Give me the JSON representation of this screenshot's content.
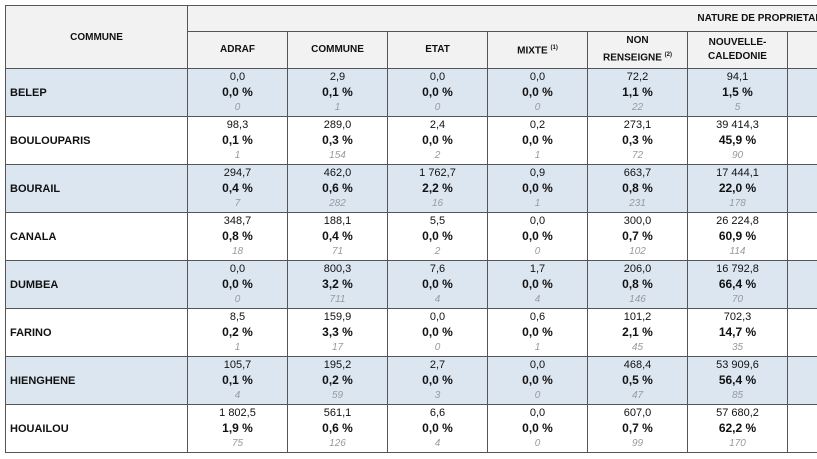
{
  "header": {
    "commune_label": "COMMUNE",
    "group_label": "NATURE DE PROPRIETAIRE",
    "columns": [
      {
        "label": "ADRAF",
        "line2": "",
        "note": ""
      },
      {
        "label": "COMMUNE",
        "line2": "",
        "note": ""
      },
      {
        "label": "ETAT",
        "line2": "",
        "note": ""
      },
      {
        "label": "MIXTE",
        "line2": "",
        "note": "(1)"
      },
      {
        "label": "NON",
        "line2": "RENSEIGNE",
        "note": "(2)"
      },
      {
        "label": "NOUVELLE-",
        "line2": "CALEDONIE",
        "note": ""
      }
    ]
  },
  "rows": [
    {
      "commune": "BELEP",
      "shaded": true,
      "cells": [
        {
          "area": "0,0",
          "pct": "0,0 %",
          "count": "0"
        },
        {
          "area": "2,9",
          "pct": "0,1 %",
          "count": "1"
        },
        {
          "area": "0,0",
          "pct": "0,0 %",
          "count": "0"
        },
        {
          "area": "0,0",
          "pct": "0,0 %",
          "count": "0"
        },
        {
          "area": "72,2",
          "pct": "1,1 %",
          "count": "22"
        },
        {
          "area": "94,1",
          "pct": "1,5 %",
          "count": "5"
        }
      ]
    },
    {
      "commune": "BOULOUPARIS",
      "shaded": false,
      "cells": [
        {
          "area": "98,3",
          "pct": "0,1 %",
          "count": "1"
        },
        {
          "area": "289,0",
          "pct": "0,3 %",
          "count": "154"
        },
        {
          "area": "2,4",
          "pct": "0,0 %",
          "count": "2"
        },
        {
          "area": "0,2",
          "pct": "0,0 %",
          "count": "1"
        },
        {
          "area": "273,1",
          "pct": "0,3 %",
          "count": "72"
        },
        {
          "area": "39 414,3",
          "pct": "45,9 %",
          "count": "90"
        }
      ]
    },
    {
      "commune": "BOURAIL",
      "shaded": true,
      "cells": [
        {
          "area": "294,7",
          "pct": "0,4 %",
          "count": "7"
        },
        {
          "area": "462,0",
          "pct": "0,6 %",
          "count": "282"
        },
        {
          "area": "1 762,7",
          "pct": "2,2 %",
          "count": "16"
        },
        {
          "area": "0,9",
          "pct": "0,0 %",
          "count": "1"
        },
        {
          "area": "663,7",
          "pct": "0,8 %",
          "count": "231"
        },
        {
          "area": "17 444,1",
          "pct": "22,0 %",
          "count": "178"
        }
      ]
    },
    {
      "commune": "CANALA",
      "shaded": false,
      "cells": [
        {
          "area": "348,7",
          "pct": "0,8 %",
          "count": "18"
        },
        {
          "area": "188,1",
          "pct": "0,4 %",
          "count": "71"
        },
        {
          "area": "5,5",
          "pct": "0,0 %",
          "count": "2"
        },
        {
          "area": "0,0",
          "pct": "0,0 %",
          "count": "0"
        },
        {
          "area": "300,0",
          "pct": "0,7 %",
          "count": "102"
        },
        {
          "area": "26 224,8",
          "pct": "60,9 %",
          "count": "114"
        }
      ]
    },
    {
      "commune": "DUMBEA",
      "shaded": true,
      "cells": [
        {
          "area": "0,0",
          "pct": "0,0 %",
          "count": "0"
        },
        {
          "area": "800,3",
          "pct": "3,2 %",
          "count": "711"
        },
        {
          "area": "7,6",
          "pct": "0,0 %",
          "count": "4"
        },
        {
          "area": "1,7",
          "pct": "0,0 %",
          "count": "4"
        },
        {
          "area": "206,0",
          "pct": "0,8 %",
          "count": "146"
        },
        {
          "area": "16 792,8",
          "pct": "66,4 %",
          "count": "70"
        }
      ]
    },
    {
      "commune": "FARINO",
      "shaded": false,
      "cells": [
        {
          "area": "8,5",
          "pct": "0,2 %",
          "count": "1"
        },
        {
          "area": "159,9",
          "pct": "3,3 %",
          "count": "17"
        },
        {
          "area": "0,0",
          "pct": "0,0 %",
          "count": "0"
        },
        {
          "area": "0,6",
          "pct": "0,0 %",
          "count": "1"
        },
        {
          "area": "101,2",
          "pct": "2,1 %",
          "count": "45"
        },
        {
          "area": "702,3",
          "pct": "14,7 %",
          "count": "35"
        }
      ]
    },
    {
      "commune": "HIENGHENE",
      "shaded": true,
      "cells": [
        {
          "area": "105,7",
          "pct": "0,1 %",
          "count": "4"
        },
        {
          "area": "195,2",
          "pct": "0,2 %",
          "count": "59"
        },
        {
          "area": "2,7",
          "pct": "0,0 %",
          "count": "3"
        },
        {
          "area": "0,0",
          "pct": "0,0 %",
          "count": "0"
        },
        {
          "area": "468,4",
          "pct": "0,5 %",
          "count": "47"
        },
        {
          "area": "53 909,6",
          "pct": "56,4 %",
          "count": "85"
        }
      ]
    },
    {
      "commune": "HOUAILOU",
      "shaded": false,
      "cells": [
        {
          "area": "1 802,5",
          "pct": "1,9 %",
          "count": "75"
        },
        {
          "area": "561,1",
          "pct": "0,6 %",
          "count": "126"
        },
        {
          "area": "6,6",
          "pct": "0,0 %",
          "count": "4"
        },
        {
          "area": "0,0",
          "pct": "0,0 %",
          "count": "0"
        },
        {
          "area": "607,0",
          "pct": "0,7 %",
          "count": "99"
        },
        {
          "area": "57 680,2",
          "pct": "62,2 %",
          "count": "170"
        }
      ]
    }
  ]
}
